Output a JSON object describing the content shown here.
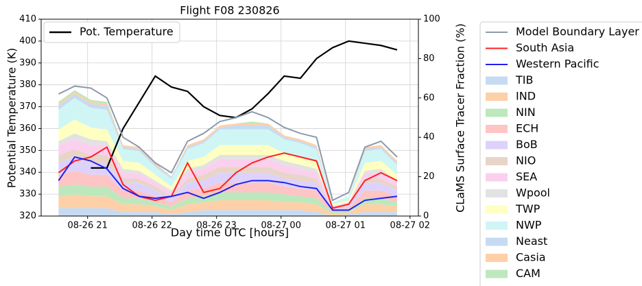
{
  "chart_data": {
    "type": "line",
    "title": "Flight F08 230826",
    "xlabel": "Day time UTC  [hours]",
    "ylabel": "Potential Temperature (K)",
    "y2label": "CLaMS Surface Tracer Fraction (%)",
    "xlim": [
      20.28,
      26.13
    ],
    "xticks": [
      {
        "value": 21,
        "label": "08-26 21"
      },
      {
        "value": 22,
        "label": "08-26 22"
      },
      {
        "value": 23,
        "label": "08-26 23"
      },
      {
        "value": 24,
        "label": "08-27 00"
      },
      {
        "value": 25,
        "label": "08-27 01"
      },
      {
        "value": 26,
        "label": "08-27 02"
      }
    ],
    "ylim": [
      320,
      410
    ],
    "yticks": [
      320,
      330,
      340,
      350,
      360,
      370,
      380,
      390,
      400,
      410
    ],
    "y2lim": [
      0,
      100
    ],
    "y2ticks": [
      0,
      20,
      40,
      60,
      80,
      100
    ],
    "grid": true,
    "x": [
      20.55,
      20.8,
      21.05,
      21.3,
      21.55,
      21.8,
      22.05,
      22.3,
      22.55,
      22.8,
      23.05,
      23.3,
      23.55,
      23.8,
      24.05,
      24.3,
      24.55,
      24.8,
      25.05,
      25.3,
      25.55,
      25.8
    ],
    "series": [
      {
        "name": "Pot. Temperature",
        "type": "line",
        "color": "#000000",
        "values": [
          null,
          null,
          342,
          342,
          360,
          372,
          384,
          379,
          377,
          370,
          366,
          365,
          369,
          376,
          384,
          383,
          392,
          397,
          400,
          399,
          398,
          396
        ]
      },
      {
        "name": "Model Boundary Layer",
        "type": "line",
        "axis": "y2",
        "color": "#8c9aa8",
        "values": [
          62,
          66,
          65,
          60,
          40,
          35,
          27,
          22,
          38,
          42,
          48,
          50,
          53,
          50,
          45,
          42,
          40,
          8,
          12,
          35,
          38,
          30
        ]
      },
      {
        "name": "South Asia",
        "type": "line",
        "axis": "y2",
        "color": "#ff2020",
        "values": [
          22,
          28,
          30,
          35,
          16,
          10,
          8,
          10,
          27,
          12,
          14,
          22,
          27,
          30,
          32,
          30,
          28,
          4,
          6,
          18,
          22,
          18
        ]
      },
      {
        "name": "Western Pacific",
        "type": "line",
        "axis": "y2",
        "color": "#2020ee",
        "values": [
          18,
          30,
          28,
          24,
          14,
          10,
          9,
          10,
          12,
          9,
          12,
          16,
          18,
          18,
          17,
          15,
          14,
          3,
          3,
          8,
          9,
          10
        ]
      },
      {
        "name": "TIB",
        "type": "area",
        "axis": "y2",
        "color": "#c6dbf3",
        "values": [
          4,
          4,
          4,
          4,
          2,
          2,
          2,
          1,
          2,
          3,
          3,
          3,
          3,
          3,
          3,
          3,
          2,
          0,
          1,
          2,
          2,
          2
        ]
      },
      {
        "name": "IND",
        "type": "area",
        "axis": "y2",
        "color": "#fdd0a8",
        "values": [
          6,
          7,
          6,
          6,
          4,
          4,
          3,
          2,
          4,
          4,
          5,
          5,
          5,
          5,
          4,
          4,
          4,
          1,
          1,
          4,
          4,
          3
        ]
      },
      {
        "name": "NIN",
        "type": "area",
        "axis": "y2",
        "color": "#bde8bd",
        "values": [
          5,
          5,
          5,
          5,
          3,
          3,
          2,
          2,
          3,
          3,
          4,
          4,
          4,
          4,
          4,
          3,
          3,
          1,
          1,
          3,
          3,
          2
        ]
      },
      {
        "name": "ECH",
        "type": "area",
        "axis": "y2",
        "color": "#ffc4c4",
        "values": [
          6,
          7,
          6,
          6,
          4,
          4,
          3,
          2,
          4,
          4,
          5,
          5,
          5,
          5,
          4,
          4,
          4,
          1,
          1,
          4,
          4,
          3
        ]
      },
      {
        "name": "BoB",
        "type": "area",
        "axis": "y2",
        "color": "#ddd2fb",
        "values": [
          6,
          7,
          6,
          6,
          4,
          4,
          3,
          2,
          4,
          4,
          5,
          5,
          5,
          5,
          4,
          4,
          4,
          1,
          1,
          4,
          4,
          3
        ]
      },
      {
        "name": "NIO",
        "type": "area",
        "axis": "y2",
        "color": "#e8d5c8",
        "values": [
          4,
          4,
          4,
          4,
          2,
          2,
          2,
          1,
          2,
          3,
          3,
          3,
          3,
          3,
          3,
          3,
          2,
          0,
          1,
          2,
          2,
          2
        ]
      },
      {
        "name": "SEA",
        "type": "area",
        "axis": "y2",
        "color": "#fbd0ee",
        "values": [
          5,
          5,
          5,
          5,
          3,
          3,
          2,
          2,
          3,
          3,
          4,
          4,
          4,
          4,
          4,
          3,
          3,
          1,
          1,
          3,
          3,
          2
        ]
      },
      {
        "name": "Wpool",
        "type": "area",
        "axis": "y2",
        "color": "#e2e2e2",
        "values": [
          2,
          3,
          3,
          2,
          2,
          1,
          1,
          1,
          2,
          2,
          2,
          2,
          2,
          2,
          2,
          2,
          2,
          0,
          0,
          1,
          2,
          1
        ]
      },
      {
        "name": "TWP",
        "type": "area",
        "axis": "y2",
        "color": "#ffffc2",
        "values": [
          6,
          7,
          6,
          6,
          4,
          4,
          3,
          2,
          4,
          4,
          5,
          5,
          5,
          5,
          4,
          4,
          4,
          1,
          1,
          4,
          4,
          3
        ]
      },
      {
        "name": "NWP",
        "type": "area",
        "axis": "y2",
        "color": "#d0f5f5",
        "values": [
          10,
          11,
          10,
          10,
          6,
          6,
          4,
          4,
          6,
          7,
          8,
          8,
          8,
          8,
          7,
          7,
          6,
          1,
          2,
          6,
          6,
          5
        ]
      },
      {
        "name": "Neast",
        "type": "area",
        "axis": "y2",
        "color": "#c6dbf3",
        "values": [
          2,
          2,
          2,
          2,
          1,
          1,
          1,
          1,
          1,
          1,
          1,
          2,
          2,
          2,
          1,
          1,
          1,
          0,
          0,
          1,
          1,
          1
        ]
      },
      {
        "name": "Casia",
        "type": "area",
        "axis": "y2",
        "color": "#fdd0a8",
        "values": [
          1,
          1,
          1,
          1,
          1,
          1,
          1,
          0,
          1,
          1,
          1,
          1,
          1,
          1,
          1,
          1,
          1,
          0,
          0,
          1,
          1,
          1
        ]
      },
      {
        "name": "CAM",
        "type": "area",
        "axis": "y2",
        "color": "#bde8bd",
        "values": [
          1,
          1,
          1,
          1,
          0,
          0,
          0,
          0,
          0,
          0,
          0,
          0,
          1,
          0,
          0,
          0,
          0,
          0,
          0,
          0,
          0,
          0
        ]
      }
    ]
  }
}
